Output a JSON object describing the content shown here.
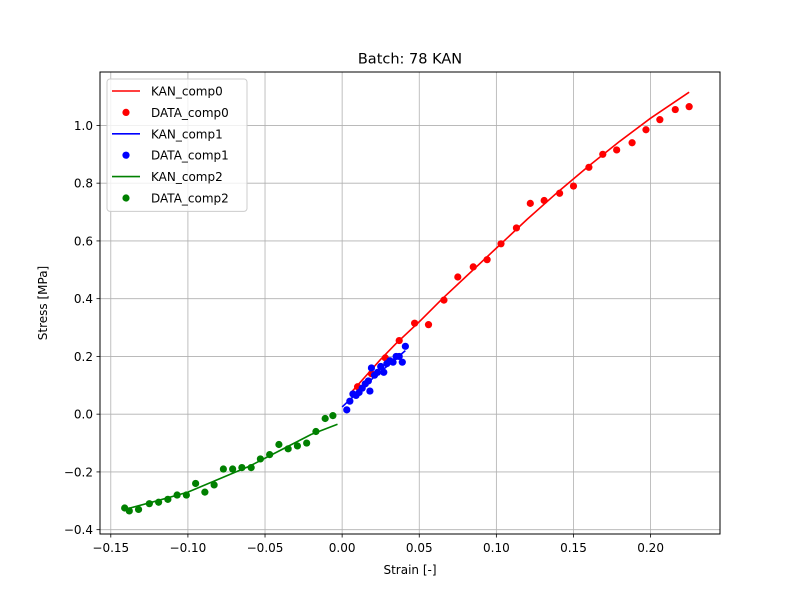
{
  "chart_data": {
    "type": "scatter",
    "title": "Batch: 78 KAN",
    "xlabel": "Strain [-]",
    "ylabel": "Stress [MPa]",
    "xlim": [
      -0.157,
      0.245
    ],
    "ylim": [
      -0.415,
      1.185
    ],
    "xticks": [
      -0.15,
      -0.1,
      -0.05,
      0.0,
      0.05,
      0.1,
      0.15,
      0.2
    ],
    "xtick_labels": [
      "−0.15",
      "−0.10",
      "−0.05",
      "0.00",
      "0.05",
      "0.10",
      "0.15",
      "0.20"
    ],
    "yticks": [
      -0.4,
      -0.2,
      0.0,
      0.2,
      0.4,
      0.6,
      0.8,
      1.0
    ],
    "ytick_labels": [
      "−0.4",
      "−0.2",
      "0.0",
      "0.2",
      "0.4",
      "0.6",
      "0.8",
      "1.0"
    ],
    "grid": true,
    "legend_position": "top-left",
    "series": [
      {
        "name": "KAN_comp0",
        "kind": "line",
        "color": "#ff0000",
        "x": [
          0.005,
          0.015,
          0.025,
          0.035,
          0.05,
          0.065,
          0.08,
          0.1,
          0.12,
          0.14,
          0.16,
          0.18,
          0.2,
          0.225
        ],
        "y": [
          0.07,
          0.13,
          0.19,
          0.245,
          0.32,
          0.4,
          0.475,
          0.575,
          0.675,
          0.77,
          0.86,
          0.945,
          1.025,
          1.115
        ]
      },
      {
        "name": "DATA_comp0",
        "kind": "scatter",
        "color": "#ff0000",
        "x": [
          0.01,
          0.019,
          0.028,
          0.037,
          0.047,
          0.056,
          0.066,
          0.075,
          0.085,
          0.094,
          0.103,
          0.113,
          0.122,
          0.131,
          0.141,
          0.15,
          0.16,
          0.169,
          0.178,
          0.188,
          0.197,
          0.206,
          0.216,
          0.225
        ],
        "y": [
          0.095,
          0.14,
          0.195,
          0.255,
          0.315,
          0.31,
          0.395,
          0.475,
          0.51,
          0.535,
          0.59,
          0.645,
          0.73,
          0.74,
          0.765,
          0.79,
          0.855,
          0.9,
          0.915,
          0.94,
          0.985,
          1.02,
          1.055,
          1.065
        ]
      },
      {
        "name": "KAN_comp1",
        "kind": "line",
        "color": "#0000ff",
        "x": [
          0.0,
          0.01,
          0.02,
          0.03,
          0.041
        ],
        "y": [
          0.025,
          0.075,
          0.125,
          0.17,
          0.22
        ]
      },
      {
        "name": "DATA_comp1",
        "kind": "scatter",
        "color": "#0000ff",
        "x": [
          0.003,
          0.005,
          0.007,
          0.009,
          0.011,
          0.013,
          0.015,
          0.017,
          0.018,
          0.019,
          0.021,
          0.023,
          0.025,
          0.027,
          0.029,
          0.031,
          0.033,
          0.035,
          0.037,
          0.039,
          0.041
        ],
        "y": [
          0.015,
          0.045,
          0.07,
          0.065,
          0.075,
          0.09,
          0.105,
          0.115,
          0.08,
          0.16,
          0.135,
          0.145,
          0.165,
          0.145,
          0.175,
          0.185,
          0.18,
          0.2,
          0.2,
          0.18,
          0.235
        ]
      },
      {
        "name": "KAN_comp2",
        "kind": "line",
        "color": "#008000",
        "x": [
          -0.141,
          -0.12,
          -0.1,
          -0.08,
          -0.06,
          -0.04,
          -0.02,
          -0.003
        ],
        "y": [
          -0.33,
          -0.3,
          -0.27,
          -0.225,
          -0.18,
          -0.125,
          -0.07,
          -0.035
        ]
      },
      {
        "name": "DATA_comp2",
        "kind": "scatter",
        "color": "#008000",
        "x": [
          -0.141,
          -0.138,
          -0.132,
          -0.125,
          -0.119,
          -0.113,
          -0.107,
          -0.101,
          -0.095,
          -0.089,
          -0.083,
          -0.077,
          -0.071,
          -0.065,
          -0.059,
          -0.053,
          -0.047,
          -0.041,
          -0.035,
          -0.029,
          -0.023,
          -0.017,
          -0.011,
          -0.006
        ],
        "y": [
          -0.325,
          -0.335,
          -0.33,
          -0.31,
          -0.305,
          -0.295,
          -0.28,
          -0.28,
          -0.24,
          -0.27,
          -0.245,
          -0.19,
          -0.19,
          -0.185,
          -0.185,
          -0.155,
          -0.14,
          -0.105,
          -0.12,
          -0.11,
          -0.1,
          -0.06,
          -0.015,
          -0.005
        ]
      }
    ]
  }
}
